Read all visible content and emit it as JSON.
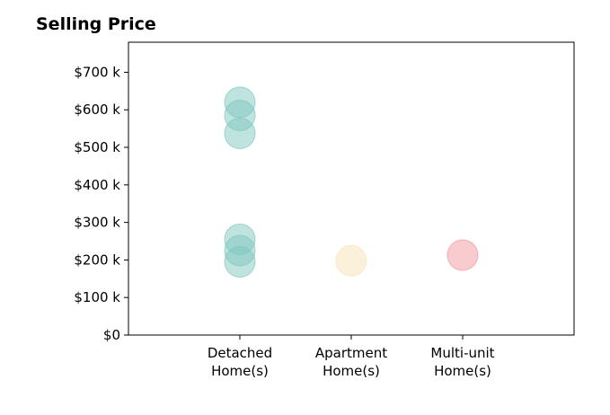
{
  "chart_data": {
    "type": "scatter",
    "title": "Selling Price",
    "xlabel": "",
    "ylabel": "",
    "categories": [
      {
        "lines": [
          "Detached",
          "Home(s)"
        ]
      },
      {
        "lines": [
          "Apartment",
          "Home(s)"
        ]
      },
      {
        "lines": [
          "Multi-unit",
          "Home(s)"
        ]
      }
    ],
    "y_ticks": [
      {
        "value": 0,
        "label": "$0"
      },
      {
        "value": 100000,
        "label": "$100 k"
      },
      {
        "value": 200000,
        "label": "$200 k"
      },
      {
        "value": 300000,
        "label": "$300 k"
      },
      {
        "value": 400000,
        "label": "$400 k"
      },
      {
        "value": 500000,
        "label": "$500 k"
      },
      {
        "value": 600000,
        "label": "$600 k"
      },
      {
        "value": 700000,
        "label": "$700 k"
      }
    ],
    "ylim": [
      0,
      780000
    ],
    "grid": false,
    "series": [
      {
        "category": "Detached Home(s)",
        "color": "#7fc8bd",
        "values": [
          620000,
          585000,
          537000,
          255000,
          225000,
          195000
        ]
      },
      {
        "category": "Apartment Home(s)",
        "color": "#f7e2b5",
        "values": [
          198000
        ]
      },
      {
        "category": "Multi-unit Home(s)",
        "color": "#f2989e",
        "values": [
          213000
        ]
      }
    ]
  }
}
